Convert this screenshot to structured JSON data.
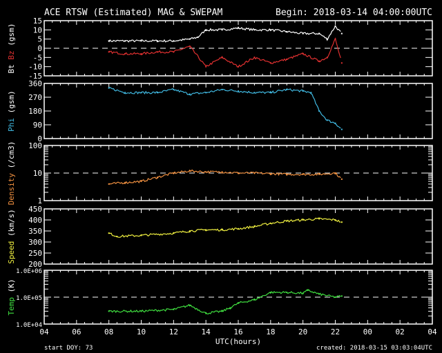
{
  "title": "ACE RTSW (Estimated) MAG & SWEPAM",
  "begin": "Begin: 2018-03-14 04:00:00UTC",
  "footer": {
    "start_doy": "start DOY:  73",
    "created": "created: 2018-03-15 03:03:04UTC"
  },
  "chart_data": [
    {
      "type": "line",
      "ylabel_parts": [
        "Bt",
        "Bz",
        "(gsm)"
      ],
      "ylim": [
        -15,
        15
      ],
      "scale": "linear",
      "yticks": [
        "15",
        "10",
        "5",
        "0",
        "-5",
        "-10",
        "-15"
      ],
      "ytick_values": [
        15,
        10,
        5,
        0,
        -5,
        -10,
        -15
      ],
      "ref_line": 0,
      "series": [
        {
          "name": "Bt",
          "color": "#ffffff",
          "x": [
            8,
            9,
            10,
            11,
            12,
            13,
            13.5,
            14,
            15,
            16,
            17,
            18,
            19,
            20,
            21,
            21.5,
            22,
            22.4
          ],
          "y": [
            4,
            4,
            4,
            4,
            4,
            5,
            6,
            10,
            10,
            11,
            10,
            10,
            9,
            8,
            8,
            5,
            12,
            8
          ]
        },
        {
          "name": "Bz",
          "color": "#e03030",
          "x": [
            8,
            9,
            10,
            11,
            12,
            13,
            14,
            15,
            16,
            17,
            18,
            19,
            20,
            21,
            21.5,
            22,
            22.4
          ],
          "y": [
            -2,
            -3,
            -3,
            -2,
            -2,
            1,
            -10,
            -5,
            -10,
            -5,
            -8,
            -6,
            -3,
            -7,
            -5,
            5,
            -8
          ]
        }
      ]
    },
    {
      "type": "line",
      "ylabel": "Phi (gsm)",
      "ylim": [
        0,
        360
      ],
      "scale": "linear",
      "yticks": [
        "360",
        "270",
        "180",
        "90",
        "0"
      ],
      "ytick_values": [
        360,
        270,
        180,
        90,
        0
      ],
      "series": [
        {
          "name": "Phi",
          "color": "#40b8e0",
          "x": [
            8,
            9,
            10,
            11,
            12,
            13,
            14,
            15,
            16,
            17,
            18,
            19,
            20,
            20.5,
            21,
            21.5,
            22,
            22.4
          ],
          "y": [
            330,
            300,
            300,
            300,
            320,
            290,
            300,
            320,
            310,
            300,
            300,
            320,
            310,
            300,
            180,
            120,
            100,
            60
          ]
        }
      ]
    },
    {
      "type": "line",
      "ylabel": "Density (/cm3)",
      "ylim": [
        1,
        100
      ],
      "scale": "log",
      "yticks": [
        "100",
        "10",
        "1"
      ],
      "ytick_values": [
        100,
        10,
        1
      ],
      "ref_line": 10,
      "series": [
        {
          "name": "Density",
          "color": "#f09040",
          "x": [
            8,
            9,
            10,
            11,
            12,
            13,
            14,
            15,
            16,
            17,
            18,
            19,
            20,
            21,
            22,
            22.4
          ],
          "y": [
            4,
            4.5,
            5,
            7,
            10,
            12,
            11,
            11,
            10,
            10,
            9.5,
            9,
            9,
            9,
            10,
            6
          ]
        }
      ]
    },
    {
      "type": "line",
      "ylabel": "Speed (km/s)",
      "ylim": [
        200,
        450
      ],
      "scale": "linear",
      "yticks": [
        "450",
        "400",
        "350",
        "300",
        "250",
        "200"
      ],
      "ytick_values": [
        450,
        400,
        350,
        300,
        250,
        200
      ],
      "series": [
        {
          "name": "Speed",
          "color": "#f0f040",
          "x": [
            8,
            8.5,
            10,
            12,
            13,
            14,
            15,
            16,
            17,
            18,
            19,
            20,
            21,
            22,
            22.4
          ],
          "y": [
            340,
            325,
            330,
            340,
            350,
            355,
            355,
            360,
            370,
            385,
            395,
            400,
            405,
            400,
            390
          ]
        }
      ]
    },
    {
      "type": "line",
      "ylabel": "Temp (K)",
      "ylim": [
        10000,
        1000000
      ],
      "scale": "log",
      "yticks": [
        "1.0E+06",
        "1.0E+05",
        "1.0E+04"
      ],
      "ytick_values": [
        1000000,
        100000,
        10000
      ],
      "ref_line": 100000,
      "series": [
        {
          "name": "Temp",
          "color": "#40e040",
          "x": [
            8,
            10,
            12,
            13,
            14,
            15,
            15.5,
            16,
            17,
            18,
            19,
            20,
            20.3,
            21,
            22,
            22.4
          ],
          "y": [
            30000,
            30000,
            35000,
            50000,
            25000,
            30000,
            40000,
            60000,
            80000,
            150000,
            150000,
            140000,
            180000,
            130000,
            100000,
            110000
          ]
        }
      ]
    }
  ],
  "xaxis": {
    "label": "UTC(hours)",
    "ticks": [
      "04",
      "06",
      "08",
      "10",
      "12",
      "14",
      "16",
      "18",
      "20",
      "22",
      "00",
      "02",
      "04"
    ],
    "xlim_hours": [
      4,
      28
    ]
  }
}
